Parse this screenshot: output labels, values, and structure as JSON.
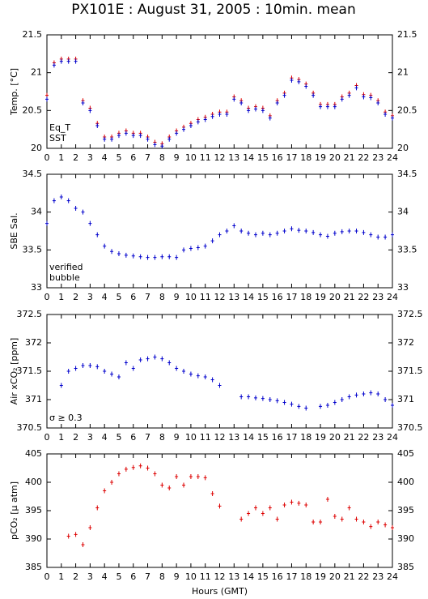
{
  "title": "PX101E : August 31, 2005 : 10min. mean",
  "chart_data": [
    {
      "type": "scatter",
      "ylabel": "Temp. [°C]",
      "x": [
        0,
        0.5,
        1,
        1.5,
        2,
        2.5,
        3,
        3.5,
        4,
        4.5,
        5,
        5.5,
        6,
        6.5,
        7,
        7.5,
        8,
        8.5,
        9,
        9.5,
        10,
        10.5,
        11,
        11.5,
        12,
        12.5,
        13,
        13.5,
        14,
        14.5,
        15,
        15.5,
        16,
        16.5,
        17,
        17.5,
        18,
        18.5,
        19,
        19.5,
        20,
        20.5,
        21,
        21.5,
        22,
        22.5,
        23,
        23.5,
        24
      ],
      "series": [
        {
          "name": "Eq_T",
          "color": "#dd0000",
          "values": [
            20.7,
            21.13,
            21.18,
            21.18,
            21.18,
            20.63,
            20.53,
            20.33,
            20.15,
            20.15,
            20.2,
            20.23,
            20.2,
            20.2,
            20.15,
            20.08,
            20.06,
            20.15,
            20.23,
            20.28,
            20.33,
            20.38,
            20.41,
            20.45,
            20.48,
            20.48,
            20.68,
            20.63,
            20.53,
            20.55,
            20.53,
            20.43,
            20.63,
            20.73,
            20.93,
            20.91,
            20.85,
            20.73,
            20.58,
            20.58,
            20.58,
            20.68,
            20.73,
            20.83,
            20.71,
            20.7,
            20.63,
            20.48,
            20.43
          ]
        },
        {
          "name": "SST",
          "color": "#0000cc",
          "values": [
            20.65,
            21.1,
            21.15,
            21.15,
            21.15,
            20.6,
            20.5,
            20.3,
            20.12,
            20.12,
            20.17,
            20.2,
            20.17,
            20.17,
            20.12,
            20.05,
            20.03,
            20.12,
            20.2,
            20.25,
            20.3,
            20.35,
            20.38,
            20.42,
            20.45,
            20.45,
            20.65,
            20.6,
            20.5,
            20.52,
            20.5,
            20.4,
            20.6,
            20.7,
            20.9,
            20.88,
            20.82,
            20.7,
            20.55,
            20.55,
            20.55,
            20.65,
            20.7,
            20.8,
            20.68,
            20.67,
            20.6,
            20.45,
            20.4
          ]
        }
      ],
      "xlim": [
        0,
        24
      ],
      "xticks": [
        0,
        1,
        2,
        3,
        4,
        5,
        6,
        7,
        8,
        9,
        10,
        11,
        12,
        13,
        14,
        15,
        16,
        17,
        18,
        19,
        20,
        21,
        22,
        23,
        24
      ],
      "ylim": [
        20,
        21.5
      ],
      "yticks": [
        20,
        20.5,
        21,
        21.5
      ]
    },
    {
      "type": "scatter",
      "ylabel": "SBE Sal.",
      "x": [
        0,
        0.5,
        1,
        1.5,
        2,
        2.5,
        3,
        3.5,
        4,
        4.5,
        5,
        5.5,
        6,
        6.5,
        7,
        7.5,
        8,
        8.5,
        9,
        9.5,
        10,
        10.5,
        11,
        11.5,
        12,
        12.5,
        13,
        13.5,
        14,
        14.5,
        15,
        15.5,
        16,
        16.5,
        17,
        17.5,
        18,
        18.5,
        19,
        19.5,
        20,
        20.5,
        21,
        21.5,
        22,
        22.5,
        23,
        23.5,
        24
      ],
      "series": [
        {
          "name": "verified",
          "color": "#0000cc",
          "values": [
            33.85,
            34.15,
            34.2,
            34.15,
            34.05,
            34.0,
            33.85,
            33.7,
            33.55,
            33.48,
            33.45,
            33.43,
            33.42,
            33.41,
            33.4,
            33.4,
            33.41,
            33.41,
            33.4,
            33.5,
            33.52,
            33.53,
            33.55,
            33.62,
            33.7,
            33.75,
            33.82,
            33.75,
            33.72,
            33.7,
            33.72,
            33.7,
            33.72,
            33.75,
            33.78,
            33.76,
            33.75,
            33.73,
            33.7,
            33.68,
            33.72,
            33.74,
            33.75,
            33.75,
            33.73,
            33.7,
            33.67,
            33.67,
            33.7
          ]
        }
      ],
      "note": {
        "text": "bubble",
        "color": "#cc00cc"
      },
      "xlim": [
        0,
        24
      ],
      "xticks": [
        0,
        1,
        2,
        3,
        4,
        5,
        6,
        7,
        8,
        9,
        10,
        11,
        12,
        13,
        14,
        15,
        16,
        17,
        18,
        19,
        20,
        21,
        22,
        23,
        24
      ],
      "ylim": [
        33,
        34.5
      ],
      "yticks": [
        33,
        33.5,
        34,
        34.5
      ]
    },
    {
      "type": "scatter",
      "ylabel": "Air xCO₂ [ppm]",
      "x": [
        0,
        0.5,
        1,
        1.5,
        2,
        2.5,
        3,
        3.5,
        4,
        4.5,
        5,
        5.5,
        6,
        6.5,
        7,
        7.5,
        8,
        8.5,
        9,
        9.5,
        10,
        10.5,
        11,
        11.5,
        12,
        12.5,
        13,
        13.5,
        14,
        14.5,
        15,
        15.5,
        16,
        16.5,
        17,
        17.5,
        18,
        18.5,
        19,
        19.5,
        20,
        20.5,
        21,
        21.5,
        22,
        22.5,
        23,
        23.5,
        24
      ],
      "series": [
        {
          "color": "#0000cc",
          "values": [
            null,
            null,
            371.25,
            371.5,
            371.55,
            371.6,
            371.6,
            371.58,
            371.5,
            371.45,
            371.4,
            371.65,
            371.55,
            371.7,
            371.72,
            371.75,
            371.72,
            371.65,
            371.55,
            371.5,
            371.45,
            371.42,
            371.4,
            371.35,
            371.25,
            null,
            null,
            371.05,
            371.05,
            371.03,
            371.02,
            371.0,
            370.98,
            370.95,
            370.92,
            370.88,
            370.85,
            null,
            370.88,
            370.9,
            370.95,
            371.0,
            371.05,
            371.08,
            371.1,
            371.12,
            371.1,
            371.0,
            370.9
          ]
        }
      ],
      "note": {
        "text": "σ ≥ 0.3",
        "color": "#cc00cc"
      },
      "xlim": [
        0,
        24
      ],
      "xticks": [
        0,
        1,
        2,
        3,
        4,
        5,
        6,
        7,
        8,
        9,
        10,
        11,
        12,
        13,
        14,
        15,
        16,
        17,
        18,
        19,
        20,
        21,
        22,
        23,
        24
      ],
      "ylim": [
        370.5,
        372.5
      ],
      "yticks": [
        370.5,
        371,
        371.5,
        372,
        372.5
      ]
    },
    {
      "type": "scatter",
      "ylabel": "pCO₂ [µ atm]",
      "xlabel": "Hours (GMT)",
      "x": [
        0,
        0.5,
        1,
        1.5,
        2,
        2.5,
        3,
        3.5,
        4,
        4.5,
        5,
        5.5,
        6,
        6.5,
        7,
        7.5,
        8,
        8.5,
        9,
        9.5,
        10,
        10.5,
        11,
        11.5,
        12,
        12.5,
        13,
        13.5,
        14,
        14.5,
        15,
        15.5,
        16,
        16.5,
        17,
        17.5,
        18,
        18.5,
        19,
        19.5,
        20,
        20.5,
        21,
        21.5,
        22,
        22.5,
        23,
        23.5,
        24
      ],
      "series": [
        {
          "color": "#dd0000",
          "values": [
            null,
            null,
            null,
            390.5,
            390.8,
            389,
            392,
            395.5,
            398.5,
            400,
            401.5,
            402.3,
            402.6,
            402.9,
            402.5,
            401.5,
            399.5,
            399,
            401,
            399.5,
            401,
            401,
            400.8,
            398,
            395.8,
            null,
            null,
            393.5,
            394.5,
            395.5,
            394.5,
            395.5,
            393.5,
            396,
            396.5,
            396.3,
            396,
            393,
            393,
            397,
            394,
            393.5,
            395.5,
            393.5,
            393,
            392.2,
            393,
            392.5,
            392
          ]
        }
      ],
      "xlim": [
        0,
        24
      ],
      "xticks": [
        0,
        1,
        2,
        3,
        4,
        5,
        6,
        7,
        8,
        9,
        10,
        11,
        12,
        13,
        14,
        15,
        16,
        17,
        18,
        19,
        20,
        21,
        22,
        23,
        24
      ],
      "ylim": [
        385,
        405
      ],
      "yticks": [
        385,
        390,
        395,
        400,
        405
      ]
    }
  ]
}
